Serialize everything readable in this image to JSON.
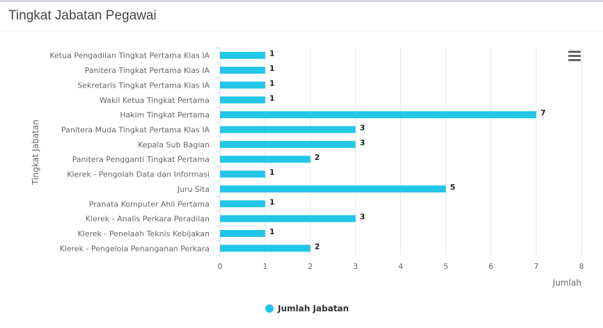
{
  "panel": {
    "title": "Tingkat Jabatan Pegawai"
  },
  "colors": {
    "bar": "#23c6e6",
    "grid": "#e6e6e6",
    "axis_text": "#666666",
    "label_text": "#222222"
  },
  "menu": {
    "icon": "hamburger-menu-icon"
  },
  "chart_data": {
    "type": "bar",
    "orientation": "horizontal",
    "categories": [
      "Ketua Pengadilan Tingkat Pertama Klas IA",
      "Panitera Tingkat Pertama Klas IA",
      "Sekretaris Tingkat Pertama Klas IA",
      "Wakil Ketua Tingkat Pertama",
      "Hakim Tingkat Pertama",
      "Panitera Muda Tingkat Pertama Klas IA",
      "Kepala Sub Bagian",
      "Panitera Pengganti Tingkat Pertama",
      "Klerek - Pengolah Data dan Informasi",
      "Juru Sita",
      "Pranata Komputer Ahli Pertama",
      "Klerek - Analis Perkara Peradilan",
      "Klerek - Penelaah Teknis Kebijakan",
      "Klerek - Pengelola Penanganan Perkara"
    ],
    "series": [
      {
        "name": "Jumlah Jabatan",
        "values": [
          1,
          1,
          1,
          1,
          7,
          3,
          3,
          2,
          1,
          5,
          1,
          3,
          1,
          2
        ]
      }
    ],
    "xlabel": "Tingkat Jabatan",
    "ylabel": "Jumlah",
    "ylim": [
      0,
      8
    ],
    "ticks": [
      "0",
      "1",
      "2",
      "3",
      "4",
      "5",
      "6",
      "7",
      "8"
    ],
    "grid": true,
    "data_labels": true,
    "legend": "bottom-center"
  }
}
